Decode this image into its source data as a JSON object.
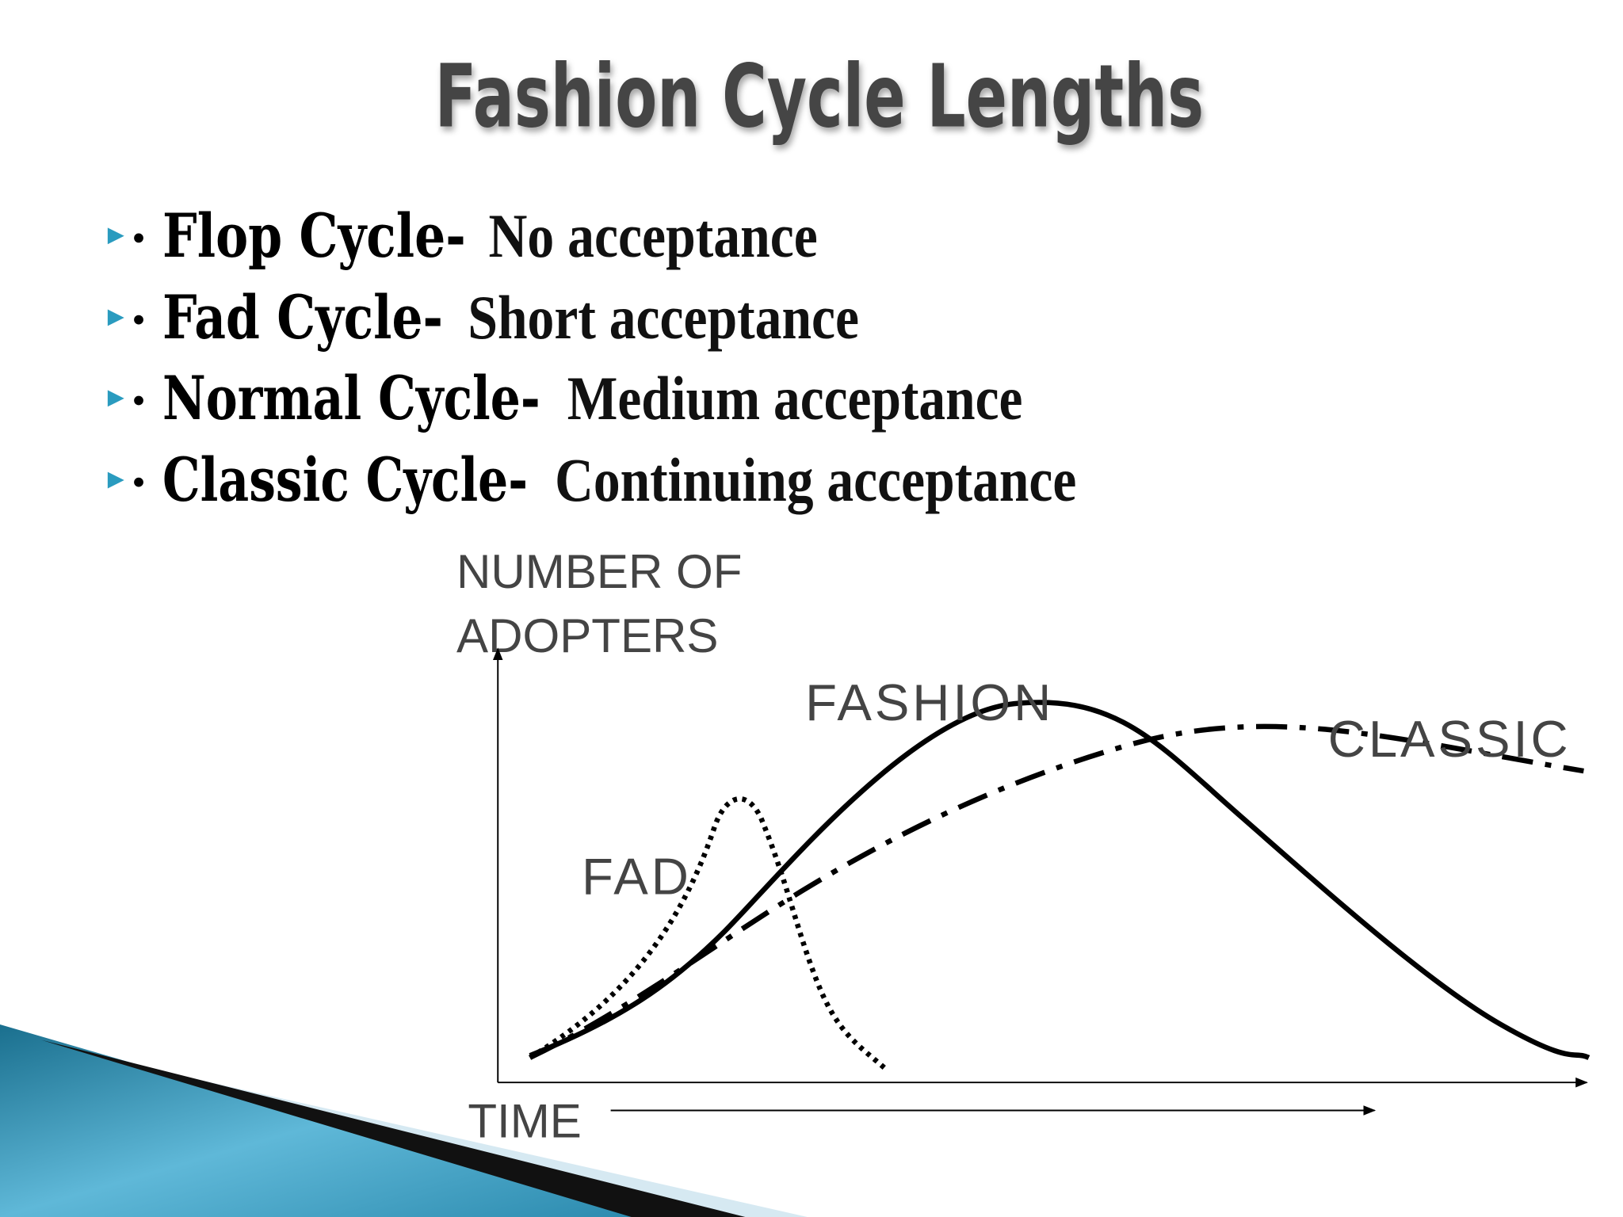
{
  "title": "Fashion Cycle Lengths",
  "bullets": [
    {
      "term": "Flop Cycle-",
      "description": "No acceptance"
    },
    {
      "term": "Fad Cycle-",
      "description": "Short acceptance"
    },
    {
      "term": "Normal Cycle-",
      "description": "Medium acceptance"
    },
    {
      "term": "Classic Cycle-",
      "description": "Continuing acceptance"
    }
  ],
  "diagram": {
    "y_axis_label": [
      "NUMBER OF",
      "ADOPTERS"
    ],
    "x_axis_label": "TIME",
    "curves": [
      {
        "label": "FASHION"
      },
      {
        "label": "FAD"
      },
      {
        "label": "CLASSIC"
      }
    ]
  }
}
